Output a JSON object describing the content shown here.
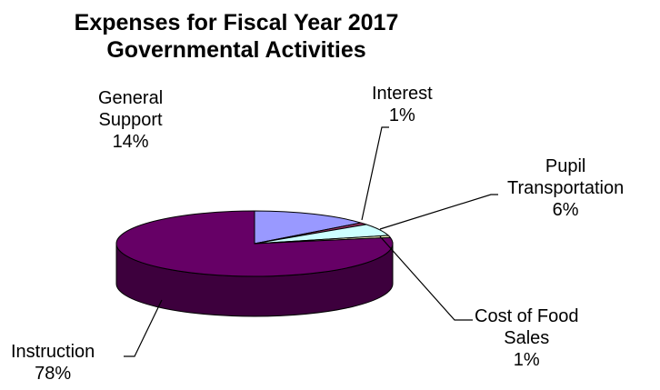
{
  "chart_data": {
    "type": "pie",
    "title": [
      "Expenses for Fiscal Year 2017",
      "Governmental Activities"
    ],
    "style": "3d",
    "slices": [
      {
        "label": [
          "General",
          "Support"
        ],
        "percent_text": "14%",
        "value": 14,
        "color": "#9999ff",
        "side_color": "#6f6fcc"
      },
      {
        "label": [
          "Interest"
        ],
        "percent_text": "1%",
        "value": 1,
        "color": "#993366",
        "side_color": "#6d2449"
      },
      {
        "label": [
          "Pupil",
          "Transportation"
        ],
        "percent_text": "6%",
        "value": 6,
        "color": "#ccffff",
        "side_color": "#99cccc"
      },
      {
        "label": [
          "Cost of Food",
          "Sales"
        ],
        "percent_text": "1%",
        "value": 1,
        "color": "#ffffcc",
        "side_color": "#cccc99"
      },
      {
        "label": [
          "Instruction"
        ],
        "percent_text": "78%",
        "value": 78,
        "color": "#660066",
        "side_color": "#3d003d"
      }
    ]
  }
}
